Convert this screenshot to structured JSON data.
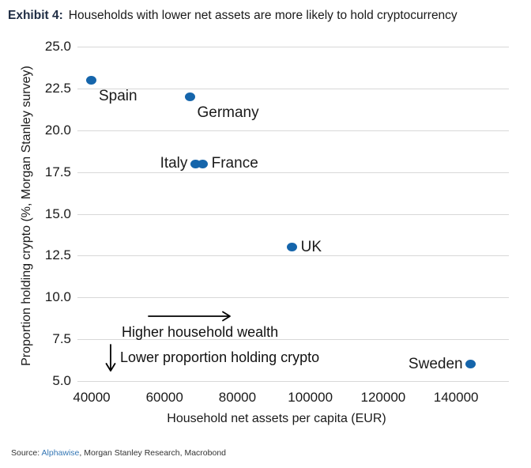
{
  "title": {
    "exhibit_label": "Exhibit 4:",
    "text": "Households with lower net assets are more likely to hold cryptocurrency"
  },
  "source": {
    "prefix": "Source: ",
    "link_text": "Alphawise",
    "rest": ", Morgan Stanley Research, Macrobond"
  },
  "colors": {
    "point": "#1565ab",
    "gridline": "#d8d8d8",
    "exhibit_label": "#1f2d44",
    "source_link": "#3577b5"
  },
  "chart_data": {
    "type": "scatter",
    "title": "Households with lower net assets are more likely to hold cryptocurrency",
    "xlabel": "Household net assets per capita (EUR)",
    "ylabel": "Proportion holding crypto (%, Morgan Stanley survey)",
    "xlim": [
      36100,
      154500
    ],
    "ylim": [
      5,
      25
    ],
    "xticks": [
      "40000",
      "60000",
      "80000",
      "100000",
      "120000",
      "140000"
    ],
    "yticks": [
      "25.0",
      "22.5",
      "20.0",
      "17.5",
      "15.0",
      "12.5",
      "10.0",
      "7.5",
      "5.0"
    ],
    "grid": "horizontal",
    "legend": "none",
    "points": [
      {
        "name": "Spain",
        "x": 40000,
        "y": 23,
        "label_side": "below"
      },
      {
        "name": "Germany",
        "x": 67000,
        "y": 22,
        "label_side": "below"
      },
      {
        "name": "Italy",
        "x": 68500,
        "y": 18,
        "label_side": "left"
      },
      {
        "name": "France",
        "x": 70500,
        "y": 18,
        "label_side": "right"
      },
      {
        "name": "UK",
        "x": 95000,
        "y": 13,
        "label_side": "right"
      },
      {
        "name": "Sweden",
        "x": 144000,
        "y": 6,
        "label_side": "left"
      }
    ],
    "annotations": [
      {
        "text": "Higher household wealth",
        "arrow": "right"
      },
      {
        "text": "Lower proportion holding crypto",
        "arrow": "down"
      }
    ]
  }
}
